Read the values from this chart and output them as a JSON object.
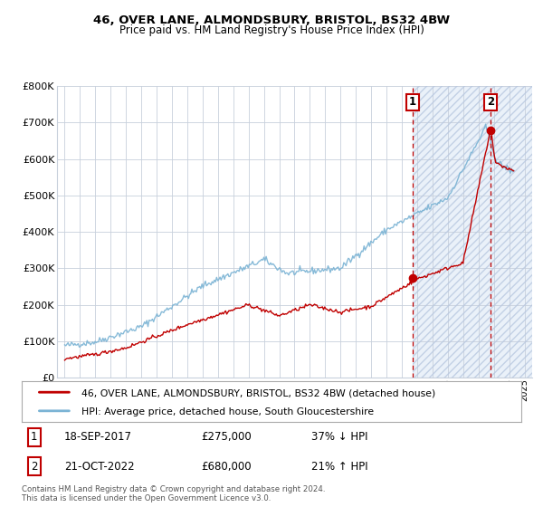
{
  "title": "46, OVER LANE, ALMONDSBURY, BRISTOL, BS32 4BW",
  "subtitle": "Price paid vs. HM Land Registry's House Price Index (HPI)",
  "legend_line1": "46, OVER LANE, ALMONDSBURY, BRISTOL, BS32 4BW (detached house)",
  "legend_line2": "HPI: Average price, detached house, South Gloucestershire",
  "annotation1_label": "1",
  "annotation1_date": "18-SEP-2017",
  "annotation1_price": "£275,000",
  "annotation1_hpi": "37% ↓ HPI",
  "annotation2_label": "2",
  "annotation2_date": "21-OCT-2022",
  "annotation2_price": "£680,000",
  "annotation2_hpi": "21% ↑ HPI",
  "footer": "Contains HM Land Registry data © Crown copyright and database right 2024.\nThis data is licensed under the Open Government Licence v3.0.",
  "hpi_color": "#7ab3d4",
  "price_color": "#c00000",
  "shade_bg_color": "#dce8f5",
  "grid_color": "#c8d0dc",
  "annotation_color": "#c00000",
  "ylim_min": 0,
  "ylim_max": 800000,
  "yticks": [
    0,
    100000,
    200000,
    300000,
    400000,
    500000,
    600000,
    700000,
    800000
  ],
  "ytick_labels": [
    "£0",
    "£100K",
    "£200K",
    "£300K",
    "£400K",
    "£500K",
    "£600K",
    "£700K",
    "£800K"
  ],
  "xmin": 1994.5,
  "xmax": 2025.5,
  "sale1_year": 2017.72,
  "sale2_year": 2022.8,
  "sale1_price": 275000,
  "sale2_price": 680000,
  "shade_start": 2017.72,
  "shade_end": 2025.5
}
